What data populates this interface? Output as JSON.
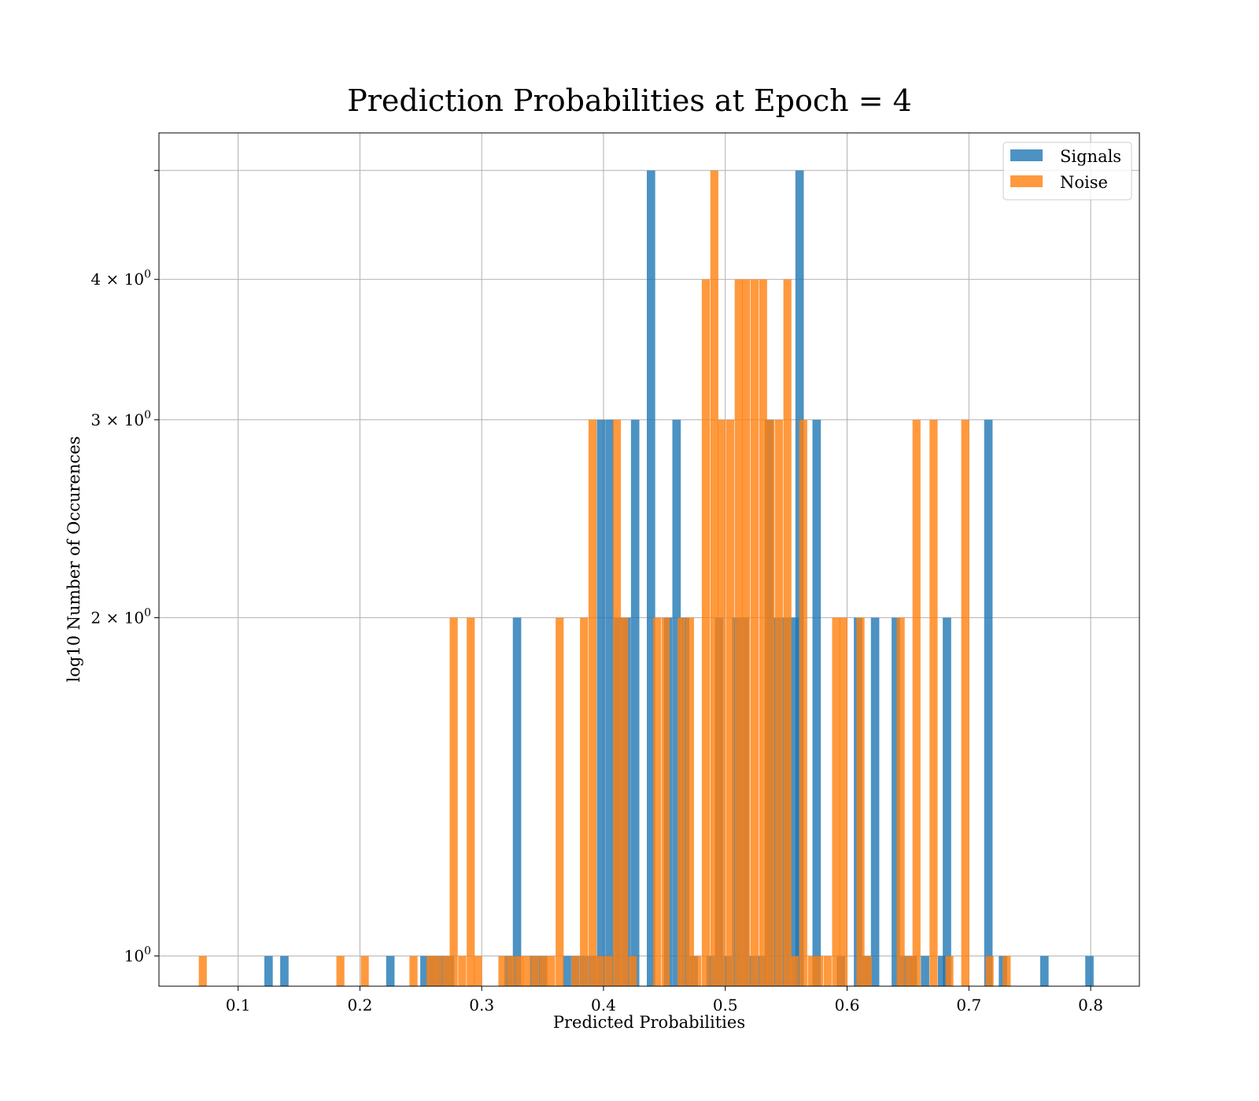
{
  "chart_data": {
    "type": "bar",
    "title": "Prediction Probabilities at Epoch = 4",
    "xlabel": "Predicted Probabilities",
    "ylabel": "log10 Number of Occurences",
    "yscale": "log",
    "xlim": [
      0.035,
      0.84
    ],
    "ylim": [
      0.94,
      5.4
    ],
    "grid": true,
    "legend_position": "top-right",
    "x_ticks": [
      {
        "value": 0.1,
        "label": "0.1"
      },
      {
        "value": 0.2,
        "label": "0.2"
      },
      {
        "value": 0.3,
        "label": "0.3"
      },
      {
        "value": 0.4,
        "label": "0.4"
      },
      {
        "value": 0.5,
        "label": "0.5"
      },
      {
        "value": 0.6,
        "label": "0.6"
      },
      {
        "value": 0.7,
        "label": "0.7"
      },
      {
        "value": 0.8,
        "label": "0.8"
      }
    ],
    "y_ticks": [
      {
        "value": 1,
        "base": "10",
        "exp": "0"
      },
      {
        "value": 2,
        "base": "2 × 10",
        "exp": "0"
      },
      {
        "value": 3,
        "base": "3 × 10",
        "exp": "0"
      },
      {
        "value": 4,
        "base": "4 × 10",
        "exp": "0"
      },
      {
        "value": 5,
        "base": "",
        "exp": ""
      }
    ],
    "series": [
      {
        "name": "Signals",
        "color": "#1f77b4",
        "opacity": 0.8,
        "bin_width": 0.0069,
        "bars": [
          {
            "x": 0.125,
            "y": 1
          },
          {
            "x": 0.138,
            "y": 1
          },
          {
            "x": 0.225,
            "y": 1
          },
          {
            "x": 0.253,
            "y": 1
          },
          {
            "x": 0.26,
            "y": 1
          },
          {
            "x": 0.267,
            "y": 1
          },
          {
            "x": 0.274,
            "y": 1
          },
          {
            "x": 0.322,
            "y": 1
          },
          {
            "x": 0.329,
            "y": 2
          },
          {
            "x": 0.343,
            "y": 1
          },
          {
            "x": 0.35,
            "y": 1
          },
          {
            "x": 0.37,
            "y": 1
          },
          {
            "x": 0.377,
            "y": 1
          },
          {
            "x": 0.384,
            "y": 1
          },
          {
            "x": 0.391,
            "y": 1
          },
          {
            "x": 0.398,
            "y": 3
          },
          {
            "x": 0.405,
            "y": 3
          },
          {
            "x": 0.412,
            "y": 2
          },
          {
            "x": 0.419,
            "y": 2
          },
          {
            "x": 0.426,
            "y": 3
          },
          {
            "x": 0.439,
            "y": 5
          },
          {
            "x": 0.453,
            "y": 2
          },
          {
            "x": 0.46,
            "y": 3
          },
          {
            "x": 0.467,
            "y": 2
          },
          {
            "x": 0.474,
            "y": 1
          },
          {
            "x": 0.488,
            "y": 1
          },
          {
            "x": 0.495,
            "y": 2
          },
          {
            "x": 0.502,
            "y": 1
          },
          {
            "x": 0.509,
            "y": 2
          },
          {
            "x": 0.516,
            "y": 2
          },
          {
            "x": 0.523,
            "y": 1
          },
          {
            "x": 0.53,
            "y": 1
          },
          {
            "x": 0.536,
            "y": 3
          },
          {
            "x": 0.543,
            "y": 2
          },
          {
            "x": 0.55,
            "y": 2
          },
          {
            "x": 0.557,
            "y": 2
          },
          {
            "x": 0.561,
            "y": 5
          },
          {
            "x": 0.575,
            "y": 3
          },
          {
            "x": 0.595,
            "y": 1
          },
          {
            "x": 0.609,
            "y": 2
          },
          {
            "x": 0.616,
            "y": 1
          },
          {
            "x": 0.623,
            "y": 2
          },
          {
            "x": 0.64,
            "y": 2
          },
          {
            "x": 0.647,
            "y": 1
          },
          {
            "x": 0.654,
            "y": 1
          },
          {
            "x": 0.664,
            "y": 1
          },
          {
            "x": 0.678,
            "y": 1
          },
          {
            "x": 0.682,
            "y": 2
          },
          {
            "x": 0.716,
            "y": 3
          },
          {
            "x": 0.728,
            "y": 1
          },
          {
            "x": 0.762,
            "y": 1
          },
          {
            "x": 0.799,
            "y": 1
          }
        ]
      },
      {
        "name": "Noise",
        "color": "#ff7f0e",
        "opacity": 0.8,
        "bin_width": 0.0066,
        "bars": [
          {
            "x": 0.071,
            "y": 1
          },
          {
            "x": 0.184,
            "y": 1
          },
          {
            "x": 0.204,
            "y": 1
          },
          {
            "x": 0.244,
            "y": 1
          },
          {
            "x": 0.258,
            "y": 1
          },
          {
            "x": 0.264,
            "y": 1
          },
          {
            "x": 0.271,
            "y": 1
          },
          {
            "x": 0.277,
            "y": 2
          },
          {
            "x": 0.284,
            "y": 1
          },
          {
            "x": 0.291,
            "y": 2
          },
          {
            "x": 0.297,
            "y": 1
          },
          {
            "x": 0.317,
            "y": 1
          },
          {
            "x": 0.324,
            "y": 1
          },
          {
            "x": 0.331,
            "y": 1
          },
          {
            "x": 0.337,
            "y": 1
          },
          {
            "x": 0.344,
            "y": 1
          },
          {
            "x": 0.351,
            "y": 1
          },
          {
            "x": 0.357,
            "y": 1
          },
          {
            "x": 0.364,
            "y": 2
          },
          {
            "x": 0.377,
            "y": 1
          },
          {
            "x": 0.384,
            "y": 2
          },
          {
            "x": 0.391,
            "y": 3
          },
          {
            "x": 0.397,
            "y": 1
          },
          {
            "x": 0.404,
            "y": 1
          },
          {
            "x": 0.411,
            "y": 3
          },
          {
            "x": 0.417,
            "y": 2
          },
          {
            "x": 0.424,
            "y": 1
          },
          {
            "x": 0.444,
            "y": 2
          },
          {
            "x": 0.451,
            "y": 2
          },
          {
            "x": 0.464,
            "y": 2
          },
          {
            "x": 0.471,
            "y": 2
          },
          {
            "x": 0.477,
            "y": 1
          },
          {
            "x": 0.484,
            "y": 4
          },
          {
            "x": 0.491,
            "y": 5
          },
          {
            "x": 0.497,
            "y": 3
          },
          {
            "x": 0.504,
            "y": 3
          },
          {
            "x": 0.511,
            "y": 4
          },
          {
            "x": 0.517,
            "y": 4
          },
          {
            "x": 0.524,
            "y": 4
          },
          {
            "x": 0.531,
            "y": 4
          },
          {
            "x": 0.537,
            "y": 3
          },
          {
            "x": 0.544,
            "y": 3
          },
          {
            "x": 0.551,
            "y": 4
          },
          {
            "x": 0.557,
            "y": 1
          },
          {
            "x": 0.564,
            "y": 3
          },
          {
            "x": 0.571,
            "y": 1
          },
          {
            "x": 0.577,
            "y": 1
          },
          {
            "x": 0.584,
            "y": 1
          },
          {
            "x": 0.591,
            "y": 2
          },
          {
            "x": 0.597,
            "y": 2
          },
          {
            "x": 0.611,
            "y": 2
          },
          {
            "x": 0.617,
            "y": 1
          },
          {
            "x": 0.644,
            "y": 2
          },
          {
            "x": 0.651,
            "y": 1
          },
          {
            "x": 0.657,
            "y": 3
          },
          {
            "x": 0.671,
            "y": 3
          },
          {
            "x": 0.684,
            "y": 1
          },
          {
            "x": 0.697,
            "y": 3
          },
          {
            "x": 0.717,
            "y": 1
          },
          {
            "x": 0.731,
            "y": 1
          }
        ]
      }
    ]
  }
}
